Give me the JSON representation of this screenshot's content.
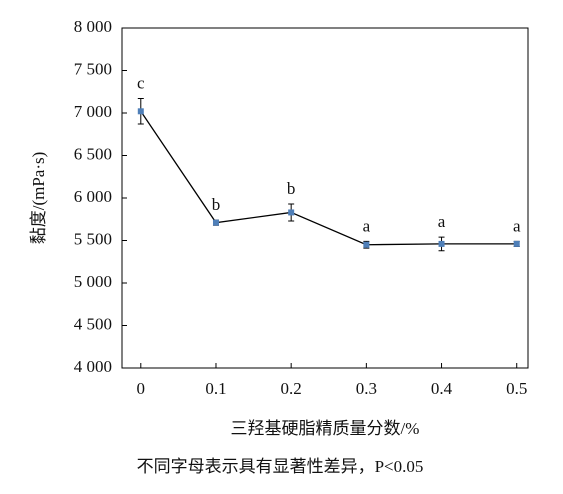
{
  "chart_data": {
    "type": "line",
    "x": [
      0,
      0.1,
      0.2,
      0.3,
      0.4,
      0.5
    ],
    "values": [
      7020,
      5710,
      5830,
      5450,
      5460,
      5460
    ],
    "errors": [
      150,
      30,
      100,
      40,
      80,
      30
    ],
    "significance_labels": [
      "c",
      "b",
      "b",
      "a",
      "a",
      "a"
    ],
    "color": "#4f7fb8",
    "line_color": "#000000",
    "xlim": [
      -0.025,
      0.515
    ],
    "xticks": [
      0,
      0.1,
      0.2,
      0.3,
      0.4,
      0.5
    ],
    "ylim": [
      4000,
      8000
    ],
    "yticks": [
      {
        "value": 4000,
        "label": "4 000"
      },
      {
        "value": 4500,
        "label": "4 500"
      },
      {
        "value": 5000,
        "label": "5 000"
      },
      {
        "value": 5500,
        "label": "5 500"
      },
      {
        "value": 6000,
        "label": "6 000"
      },
      {
        "value": 6500,
        "label": "6 500"
      },
      {
        "value": 7000,
        "label": "7 000"
      },
      {
        "value": 7500,
        "label": "7 500"
      },
      {
        "value": 8000,
        "label": "8 000"
      }
    ],
    "y_label": "黏度/(mPa·s)",
    "x_label": "三羟基硬脂精质量分数/%",
    "note": "不同字母表示具有显著性差异，P<0.05"
  }
}
